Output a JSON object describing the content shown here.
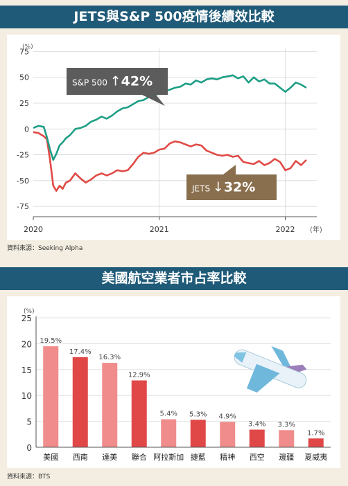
{
  "sections": [
    {
      "title": "JETS與S&P 500疫情後績效比較",
      "source": "資料來源：Seeking Alpha"
    },
    {
      "title": "美國航空業者市占率比較",
      "source": "資料來源：BTS"
    }
  ],
  "colors": {
    "banner": "#1f5a78",
    "background": "#f3eee1",
    "sp500": "#1e9e86",
    "jets": "#e04a45",
    "callout_sp500": "#5c5c5c",
    "callout_jets": "#8a6f4e",
    "bar_light": "#f08c8c",
    "bar_dark": "#e04848"
  },
  "chart_data": [
    {
      "type": "line",
      "unit_label": "(%)",
      "x_unit_label": "(年)",
      "x_ticks": [
        "2020",
        "2021",
        "2022"
      ],
      "y_ticks": [
        "75",
        "50",
        "25",
        "0",
        "-25",
        "-50",
        "-75"
      ],
      "ylim": [
        -85,
        78
      ],
      "xlim": [
        0,
        27
      ],
      "x_month_offset_of_2020": 0,
      "grid": true,
      "series": [
        {
          "name": "S&P 500",
          "callout": {
            "name": "S&P 500",
            "arrow": "↑",
            "change": "42%"
          },
          "color": "#1e9e86",
          "x": [
            0,
            0.5,
            1.0,
            1.3,
            1.6,
            1.9,
            2.2,
            2.5,
            2.8,
            3.1,
            3.5,
            4.0,
            4.5,
            5.0,
            5.5,
            6.0,
            6.5,
            7.0,
            7.5,
            8.0,
            8.5,
            9.0,
            9.5,
            10.0,
            10.5,
            11.0,
            11.5,
            12.0,
            12.5,
            13.0,
            13.5,
            14.0,
            14.5,
            15.0,
            15.5,
            16.0,
            16.5,
            17.0,
            17.5,
            18.0,
            18.5,
            19.0,
            19.5,
            20.0,
            20.5,
            21.0,
            21.5,
            22.0,
            22.5,
            23.0,
            23.5,
            24.0,
            24.5,
            25.0,
            25.5,
            26.0
          ],
          "values": [
            1,
            3,
            2,
            -8,
            -20,
            -30,
            -24,
            -16,
            -13,
            -9,
            -6,
            0,
            1,
            3,
            7,
            9,
            12,
            10,
            13,
            17,
            20,
            21,
            24,
            27,
            28,
            31,
            33,
            34,
            37,
            38,
            40,
            41,
            44,
            43,
            47,
            45,
            48,
            49,
            48,
            50,
            51,
            52,
            49,
            51,
            45,
            50,
            46,
            48,
            44,
            44,
            40,
            36,
            40,
            45,
            43,
            40
          ]
        },
        {
          "name": "JETS",
          "callout": {
            "name": "JETS",
            "arrow": "↓",
            "change": "32%"
          },
          "color": "#e04a45",
          "x": [
            0,
            0.5,
            1.0,
            1.3,
            1.6,
            1.9,
            2.2,
            2.5,
            2.8,
            3.1,
            3.5,
            4.0,
            4.5,
            5.0,
            5.5,
            6.0,
            6.5,
            7.0,
            7.5,
            8.0,
            8.5,
            9.0,
            9.5,
            10.0,
            10.5,
            11.0,
            11.5,
            12.0,
            12.5,
            13.0,
            13.5,
            14.0,
            14.5,
            15.0,
            15.5,
            16.0,
            16.5,
            17.0,
            17.5,
            18.0,
            18.5,
            19.0,
            19.5,
            20.0,
            20.5,
            21.0,
            21.5,
            22.0,
            22.5,
            23.0,
            23.5,
            24.0,
            24.5,
            25.0,
            25.5,
            26.0
          ],
          "values": [
            -3,
            -4,
            -7,
            -10,
            -30,
            -55,
            -60,
            -55,
            -58,
            -52,
            -50,
            -43,
            -48,
            -52,
            -49,
            -45,
            -43,
            -45,
            -43,
            -40,
            -41,
            -40,
            -34,
            -27,
            -23,
            -24,
            -23,
            -20,
            -19,
            -14,
            -12,
            -13,
            -15,
            -17,
            -15,
            -16,
            -21,
            -23,
            -25,
            -26,
            -25,
            -27,
            -26,
            -32,
            -33,
            -34,
            -31,
            -35,
            -33,
            -29,
            -32,
            -40,
            -38,
            -31,
            -35,
            -30
          ]
        }
      ]
    },
    {
      "type": "bar",
      "unit_label": "(%)",
      "categories": [
        "美國",
        "西南",
        "達美",
        "聯合",
        "阿拉斯加",
        "捷藍",
        "精神",
        "西空",
        "邊疆",
        "夏威夷"
      ],
      "values": [
        19.5,
        17.4,
        16.3,
        12.9,
        5.4,
        5.3,
        4.9,
        3.4,
        3.3,
        1.7
      ],
      "labels": [
        "19.5%",
        "17.4%",
        "16.3%",
        "12.9%",
        "5.4%",
        "5.3%",
        "4.9%",
        "3.4%",
        "3.3%",
        "1.7%"
      ],
      "y_ticks": [
        "25",
        "20",
        "15",
        "10",
        "5",
        "0"
      ],
      "ylim": [
        0,
        25
      ],
      "grid": true
    }
  ]
}
